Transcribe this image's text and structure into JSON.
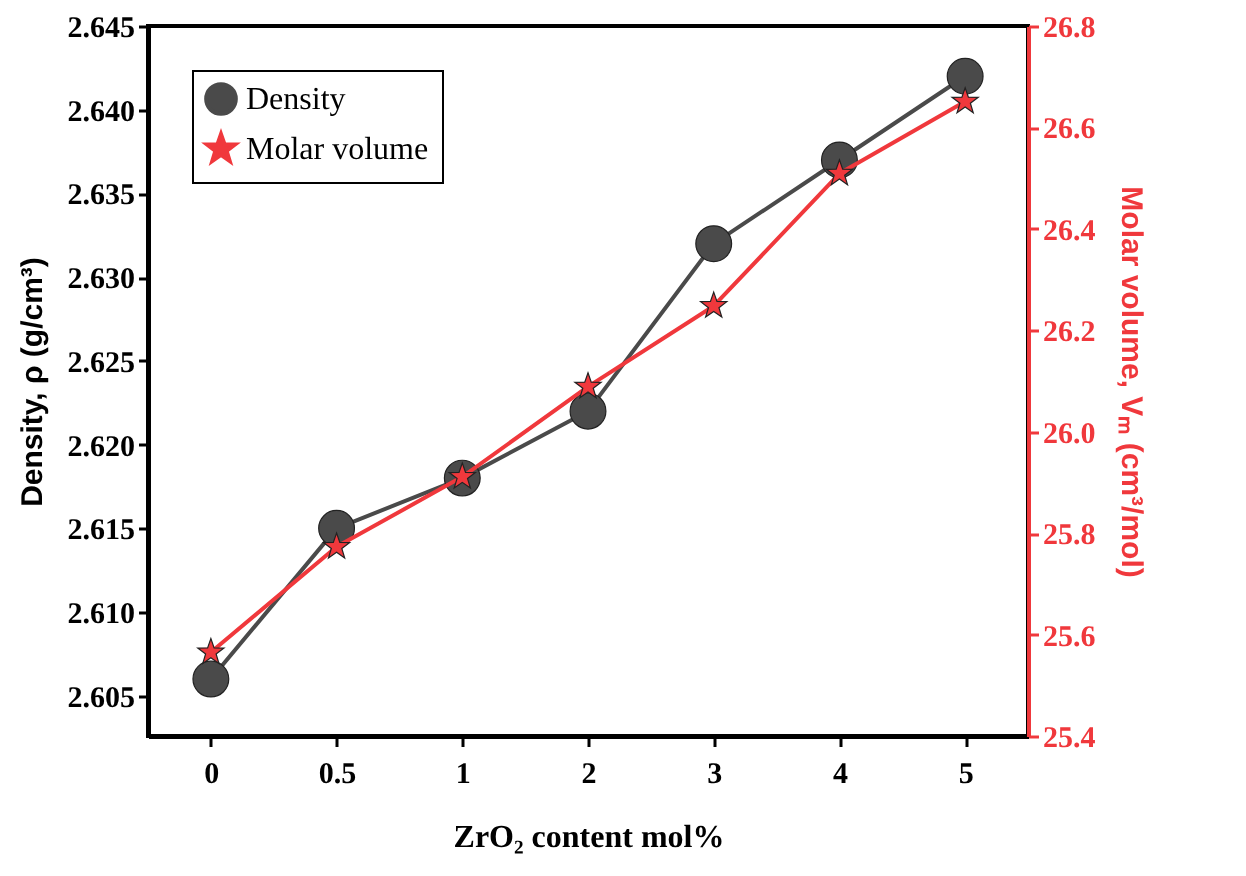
{
  "chart_data": {
    "type": "line",
    "xlabel": "ZrO₂ content mol%",
    "ylabel": "Density, ρ (g/cm³)",
    "y2label": "Molar volume, Vₘ (cm³/mol)",
    "categories": [
      "0",
      "0.5",
      "1",
      "2",
      "3",
      "4",
      "5"
    ],
    "series": [
      {
        "name": "Density",
        "color": "#4a4a4a",
        "marker": "circle",
        "values": [
          2.606,
          2.615,
          2.618,
          2.622,
          2.632,
          2.637,
          2.642
        ]
      },
      {
        "name": "Molar volume",
        "color": "#f0383c",
        "marker": "star",
        "axis": "y2",
        "values": [
          25.565,
          25.773,
          25.911,
          26.089,
          26.248,
          26.509,
          26.651
        ]
      }
    ],
    "ylim": [
      2.6026,
      2.645
    ],
    "yticks": [
      2.605,
      {
        "value": 2.61,
        "label": "2.610"
      },
      2.615,
      {
        "value": 2.62,
        "label": "2.620"
      },
      2.625,
      {
        "value": 2.63,
        "label": "2.630"
      },
      2.635,
      {
        "value": 2.64,
        "label": "2.640"
      },
      2.645
    ],
    "y2lim": [
      25.4,
      26.8
    ],
    "y2ticks": [
      {
        "value": 25.4,
        "label": "25.4"
      },
      25.6,
      25.8,
      {
        "value": 26,
        "label": "26.0"
      },
      26.2,
      26.4,
      26.6,
      26.8
    ],
    "legend": "top left",
    "grid": false,
    "line_style": "solid"
  }
}
